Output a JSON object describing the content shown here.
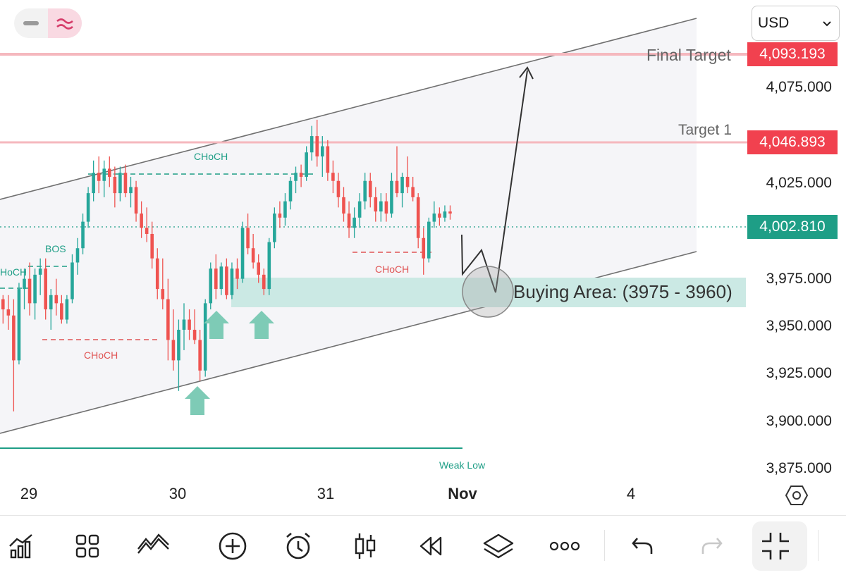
{
  "top_bar": {
    "toggle_left_icon": "minus-icon",
    "toggle_right_icon": "wave-icon",
    "currency": "USD"
  },
  "annotations": {
    "final_target": "Final Target",
    "target_1": "Target 1",
    "buying_area": "Buying Area: (3975 - 3960)",
    "choch_top": "CHoCH",
    "choch_bottom_left": "CHoCH",
    "choch_right": "CHoCH",
    "choch_left_edge": "HoCH",
    "bos": "BOS",
    "weak_low": "Weak Low"
  },
  "price_tags": {
    "final_target": "4,093.193",
    "target_1": "4,046.893",
    "current": "4,002.810"
  },
  "price_axis": [
    "4,075.000",
    "4,025.000",
    "3,975.000",
    "3,950.000",
    "3,925.000",
    "3,900.000",
    "3,875.000"
  ],
  "time_axis": {
    "d29": "29",
    "d30": "30",
    "d31": "31",
    "nov": "Nov",
    "d4": "4"
  },
  "toolbar": {
    "items": [
      "chart-type-icon",
      "grid-icon",
      "indicators-icon",
      "add-icon",
      "alarm-icon",
      "candles-icon",
      "replay-icon",
      "layers-icon",
      "more-icon",
      "undo-icon",
      "redo-icon",
      "fullscreen-exit-icon"
    ]
  },
  "colors": {
    "bull": "#26a69a",
    "bear": "#ef5350",
    "target_line": "#f5b8be",
    "buy_zone": "#cbe9e4",
    "current_tag": "#1e9e86",
    "target_tag": "#f1414f"
  },
  "chart_data": {
    "type": "candlestick",
    "ylim": [
      3870,
      4105
    ],
    "target_levels": [
      4093.193,
      4046.893
    ],
    "current_price": 4002.81,
    "buy_zone": [
      3960,
      3975
    ],
    "candles": [
      [
        3960,
        3962,
        3948,
        3955
      ],
      [
        3955,
        3962,
        3945,
        3952
      ],
      [
        3952,
        3960,
        3905,
        3930
      ],
      [
        3930,
        3968,
        3928,
        3965
      ],
      [
        3965,
        3975,
        3955,
        3970
      ],
      [
        3970,
        3978,
        3952,
        3958
      ],
      [
        3958,
        3975,
        3950,
        3972
      ],
      [
        3972,
        3980,
        3962,
        3975
      ],
      [
        3975,
        3980,
        3950,
        3955
      ],
      [
        3955,
        3965,
        3945,
        3962
      ],
      [
        3962,
        3970,
        3952,
        3958
      ],
      [
        3958,
        3962,
        3948,
        3950
      ],
      [
        3950,
        3962,
        3948,
        3960
      ],
      [
        3960,
        3982,
        3958,
        3978
      ],
      [
        3978,
        3990,
        3972,
        3985
      ],
      [
        3985,
        4002,
        3982,
        3998
      ],
      [
        3998,
        4015,
        3995,
        4012
      ],
      [
        4012,
        4028,
        4008,
        4022
      ],
      [
        4022,
        4030,
        4012,
        4018
      ],
      [
        4018,
        4028,
        4010,
        4024
      ],
      [
        4024,
        4030,
        4015,
        4020
      ],
      [
        4020,
        4025,
        4005,
        4012
      ],
      [
        4012,
        4025,
        4008,
        4022
      ],
      [
        4022,
        4026,
        4010,
        4012
      ],
      [
        4012,
        4020,
        4005,
        4015
      ],
      [
        4015,
        4018,
        3998,
        4002
      ],
      [
        4002,
        4008,
        3990,
        3995
      ],
      [
        3995,
        4005,
        3988,
        3992
      ],
      [
        3992,
        3998,
        3975,
        3980
      ],
      [
        3980,
        3985,
        3960,
        3965
      ],
      [
        3965,
        3980,
        3955,
        3960
      ],
      [
        3960,
        3970,
        3930,
        3940
      ],
      [
        3940,
        3955,
        3925,
        3930
      ],
      [
        3930,
        3950,
        3915,
        3945
      ],
      [
        3945,
        3958,
        3935,
        3950
      ],
      [
        3950,
        3955,
        3940,
        3945
      ],
      [
        3945,
        3955,
        3938,
        3940
      ],
      [
        3940,
        3945,
        3920,
        3925
      ],
      [
        3925,
        3960,
        3922,
        3958
      ],
      [
        3958,
        3978,
        3955,
        3975
      ],
      [
        3975,
        3982,
        3960,
        3965
      ],
      [
        3965,
        3978,
        3962,
        3976
      ],
      [
        3976,
        3980,
        3960,
        3962
      ],
      [
        3962,
        3978,
        3960,
        3975
      ],
      [
        3975,
        3980,
        3965,
        3970
      ],
      [
        3970,
        3998,
        3968,
        3995
      ],
      [
        3995,
        4002,
        3982,
        3985
      ],
      [
        3985,
        3992,
        3975,
        3978
      ],
      [
        3978,
        3982,
        3968,
        3972
      ],
      [
        3972,
        3975,
        3962,
        3965
      ],
      [
        3965,
        3990,
        3962,
        3988
      ],
      [
        3988,
        4005,
        3985,
        4002
      ],
      [
        4002,
        4008,
        3995,
        4000
      ],
      [
        4000,
        4012,
        3996,
        4008
      ],
      [
        4008,
        4020,
        4004,
        4018
      ],
      [
        4018,
        4025,
        4012,
        4022
      ],
      [
        4022,
        4026,
        4015,
        4020
      ],
      [
        4020,
        4035,
        4018,
        4032
      ],
      [
        4032,
        4045,
        4028,
        4040
      ],
      [
        4040,
        4048,
        4025,
        4030
      ],
      [
        4030,
        4040,
        4020,
        4035
      ],
      [
        4035,
        4038,
        4018,
        4022
      ],
      [
        4022,
        4028,
        4012,
        4018
      ],
      [
        4018,
        4022,
        4005,
        4010
      ],
      [
        4010,
        4015,
        3998,
        4002
      ],
      [
        4002,
        4008,
        3990,
        3995
      ],
      [
        3995,
        4005,
        3990,
        4000
      ],
      [
        4000,
        4012,
        3995,
        4008
      ],
      [
        4008,
        4022,
        4004,
        4018
      ],
      [
        4018,
        4022,
        4005,
        4010
      ],
      [
        4010,
        4015,
        3998,
        4003
      ],
      [
        4003,
        4012,
        3998,
        4008
      ],
      [
        4008,
        4012,
        3998,
        4002
      ],
      [
        4002,
        4022,
        4000,
        4018
      ],
      [
        4018,
        4035,
        4010,
        4012
      ],
      [
        4012,
        4022,
        4005,
        4020
      ],
      [
        4020,
        4030,
        4012,
        4015
      ],
      [
        4015,
        4020,
        4008,
        4010
      ],
      [
        4010,
        4012,
        3985,
        3990
      ],
      [
        3990,
        3995,
        3972,
        3980
      ],
      [
        3980,
        4000,
        3978,
        3998
      ],
      [
        3998,
        4008,
        3995,
        4002
      ],
      [
        4002,
        4005,
        3996,
        4000
      ],
      [
        4000,
        4006,
        3998,
        4003
      ],
      [
        4003,
        4006,
        3999,
        4002
      ]
    ]
  }
}
